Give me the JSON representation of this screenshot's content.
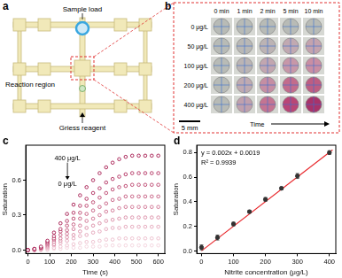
{
  "figure": {
    "a": {
      "panel": "a",
      "labels": {
        "sample": "Sample load",
        "reaction": "Reaction region",
        "reagent": "Griess reagent"
      }
    },
    "b": {
      "panel": "b",
      "columns": [
        "0 min",
        "1 min",
        "2 min",
        "5 min",
        "10 min"
      ],
      "rows": [
        "0 μg/L",
        "50 μg/L",
        "100 μg/L",
        "200 μg/L",
        "400 μg/L"
      ],
      "colors": [
        [
          "#b8bbb6",
          "#b8bbb6",
          "#b8bbb6",
          "#b8bbb6",
          "#b8bbb6"
        ],
        [
          "#b8bbb6",
          "#b9b8b5",
          "#bcb3b4",
          "#c1a9b1",
          "#c4a3ae"
        ],
        [
          "#b8bbb6",
          "#bbb4b4",
          "#c2a6b0",
          "#c797a8",
          "#c98ea3"
        ],
        [
          "#b8bbb6",
          "#bfaab1",
          "#c58ea3",
          "#c26c8c",
          "#bd5d82"
        ],
        [
          "#b8bbb6",
          "#c0a0ad",
          "#c47492",
          "#b94676",
          "#a8336a"
        ]
      ],
      "scale_bar": "5 mm",
      "axis_label": "Time"
    }
  },
  "chart_data": [
    {
      "panel": "c",
      "type": "scatter",
      "x_label": "Time (s)",
      "y_label": "Saturation",
      "annotations": [
        "400 μg/L",
        "0 μg/L"
      ],
      "marker": "circle",
      "line_style": "none",
      "grid": false,
      "x": [
        0,
        30,
        60,
        90,
        120,
        150,
        180,
        210,
        240,
        270,
        300,
        330,
        360,
        390,
        420,
        450,
        480,
        510,
        540,
        570,
        600
      ],
      "series": [
        {
          "color": "#a4154c",
          "values": [
            0,
            0.01,
            0.03,
            0.08,
            0.15,
            0.23,
            0.31,
            0.39,
            0.47,
            0.54,
            0.6,
            0.66,
            0.71,
            0.75,
            0.78,
            0.8,
            0.81,
            0.81,
            0.81,
            0.81,
            0.81
          ]
        },
        {
          "color": "#b02a5b",
          "values": [
            0,
            0.01,
            0.02,
            0.07,
            0.12,
            0.18,
            0.25,
            0.32,
            0.38,
            0.44,
            0.49,
            0.53,
            0.58,
            0.61,
            0.63,
            0.65,
            0.66,
            0.66,
            0.66,
            0.66,
            0.66
          ]
        },
        {
          "color": "#ba406a",
          "values": [
            0,
            0.01,
            0.02,
            0.06,
            0.1,
            0.16,
            0.21,
            0.27,
            0.32,
            0.38,
            0.41,
            0.45,
            0.49,
            0.52,
            0.54,
            0.55,
            0.56,
            0.56,
            0.56,
            0.56,
            0.56
          ]
        },
        {
          "color": "#c4587d",
          "values": [
            0,
            0.01,
            0.02,
            0.05,
            0.09,
            0.13,
            0.17,
            0.22,
            0.27,
            0.31,
            0.34,
            0.37,
            0.4,
            0.43,
            0.44,
            0.46,
            0.46,
            0.46,
            0.46,
            0.46,
            0.46
          ]
        },
        {
          "color": "#cf7090",
          "values": [
            0,
            0,
            0.01,
            0.04,
            0.07,
            0.1,
            0.14,
            0.18,
            0.21,
            0.25,
            0.27,
            0.3,
            0.33,
            0.34,
            0.36,
            0.37,
            0.37,
            0.37,
            0.37,
            0.37,
            0.37
          ]
        },
        {
          "color": "#d98aa4",
          "values": [
            0,
            0,
            0.01,
            0.03,
            0.05,
            0.08,
            0.11,
            0.13,
            0.16,
            0.19,
            0.21,
            0.23,
            0.25,
            0.26,
            0.27,
            0.28,
            0.28,
            0.28,
            0.28,
            0.28,
            0.28
          ]
        },
        {
          "color": "#e3a3b8",
          "values": [
            0,
            0,
            0.01,
            0.02,
            0.04,
            0.06,
            0.08,
            0.1,
            0.12,
            0.13,
            0.15,
            0.16,
            0.18,
            0.19,
            0.19,
            0.2,
            0.2,
            0.2,
            0.2,
            0.2,
            0.2
          ]
        },
        {
          "color": "#ecbccb",
          "values": [
            0,
            0,
            0,
            0.01,
            0.02,
            0.03,
            0.04,
            0.05,
            0.06,
            0.07,
            0.07,
            0.08,
            0.09,
            0.09,
            0.1,
            0.1,
            0.1,
            0.1,
            0.1,
            0.1,
            0.1
          ]
        },
        {
          "color": "#f3d3dc",
          "values": [
            0,
            0,
            0,
            0,
            0.01,
            0.01,
            0.02,
            0.02,
            0.02,
            0.03,
            0.03,
            0.03,
            0.04,
            0.04,
            0.04,
            0.04,
            0.04,
            0.04,
            0.04,
            0.04,
            0.04
          ]
        }
      ],
      "xlim": [
        -10,
        630
      ],
      "xticks": [
        0,
        100,
        200,
        300,
        400,
        500,
        600
      ],
      "ylim": [
        -0.03,
        0.9
      ],
      "yticks": [
        {
          "value": 0,
          "label": "0.0"
        },
        {
          "value": 0.3,
          "label": "0.3"
        },
        {
          "value": 0.6,
          "label": "0.6"
        }
      ]
    },
    {
      "panel": "d",
      "type": "scatter",
      "x_label": "Nitrite concentration (μg/L)",
      "y_label": "Saturation",
      "annotations": [
        "y = 0.002x + 0.0019",
        "R² = 0.9939"
      ],
      "marker": "circle",
      "color": "#333333",
      "grid": false,
      "x": [
        0,
        50,
        100,
        150,
        200,
        250,
        300,
        400
      ],
      "values": [
        0.03,
        0.11,
        0.22,
        0.32,
        0.42,
        0.51,
        0.61,
        0.8
      ],
      "errors": [
        0.02,
        0.02,
        0.015,
        0.01,
        0.015,
        0.01,
        0.02,
        0.015
      ],
      "fit": {
        "slope": 0.002,
        "intercept": 0.0019,
        "x": [
          0,
          410
        ],
        "color": "#e8262a"
      },
      "xlim": [
        -15,
        420
      ],
      "xticks": [
        0,
        100,
        200,
        300,
        400
      ],
      "ylim": [
        -0.02,
        0.86
      ],
      "yticks": [
        {
          "value": 0,
          "label": "0.0"
        },
        {
          "value": 0.2,
          "label": "0.2"
        },
        {
          "value": 0.4,
          "label": "0.4"
        },
        {
          "value": 0.6,
          "label": "0.6"
        },
        {
          "value": 0.8,
          "label": "0.8"
        }
      ]
    }
  ]
}
